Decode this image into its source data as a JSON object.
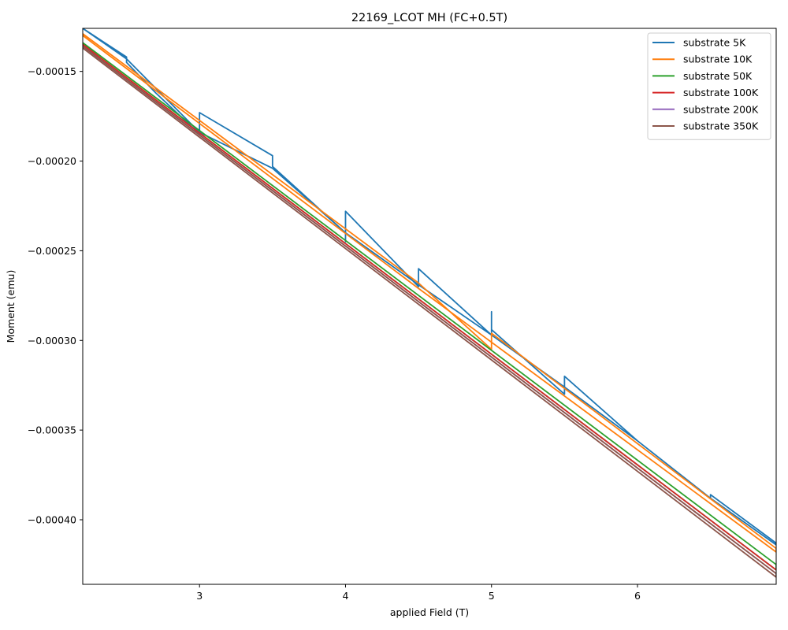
{
  "chart_data": {
    "type": "line",
    "title": "22169_LCOT MH (FC+0.5T)",
    "xlabel": "applied Field (T)",
    "ylabel": "Moment (emu)",
    "xlim": [
      2.2,
      6.95
    ],
    "ylim": [
      -0.000436,
      -0.000126
    ],
    "xticks": [
      3,
      4,
      5,
      6
    ],
    "xtick_labels": [
      "3",
      "4",
      "5",
      "6"
    ],
    "yticks": [
      -0.00015,
      -0.0002,
      -0.00025,
      -0.0003,
      -0.00035,
      -0.0004
    ],
    "ytick_labels": [
      "−0.00015",
      "−0.00020",
      "−0.00025",
      "−0.00030",
      "−0.00035",
      "−0.00040"
    ],
    "grid": false,
    "legend_position": "top-right",
    "series": [
      {
        "name": "substrate 5K",
        "color": "#1f77b4",
        "x": [
          2.2,
          2.5,
          2.5,
          2.7,
          3.0,
          3.0,
          3.0,
          3.5,
          3.5,
          4.0,
          4.0,
          4.0,
          4.5,
          4.5,
          5.0,
          5.0,
          5.0,
          5.5,
          5.5,
          6.0,
          6.5,
          6.5,
          6.95,
          6.95,
          6.5,
          6.0,
          5.5,
          5.0,
          4.5,
          4.0,
          3.5,
          3.0,
          2.5,
          2.2
        ],
        "y": [
          -0.000126,
          -0.000142,
          -0.000145,
          -0.000162,
          -0.000185,
          -0.000183,
          -0.000173,
          -0.000197,
          -0.000203,
          -0.00024,
          -0.000245,
          -0.000228,
          -0.00027,
          -0.00026,
          -0.000297,
          -0.000284,
          -0.000294,
          -0.00033,
          -0.00032,
          -0.000356,
          -0.000388,
          -0.000386,
          -0.000413,
          -0.000414,
          -0.000388,
          -0.000356,
          -0.000326,
          -0.000297,
          -0.000269,
          -0.00024,
          -0.000204,
          -0.000184,
          -0.000143,
          -0.000126
        ]
      },
      {
        "name": "substrate 10K",
        "color": "#ff7f0e",
        "x": [
          2.2,
          4.5,
          5.0,
          5.0,
          6.95,
          6.95,
          5.0,
          4.5,
          2.2
        ],
        "y": [
          -0.000129,
          -0.000268,
          -0.000305,
          -0.000296,
          -0.000416,
          -0.000418,
          -0.000301,
          -0.000271,
          -0.00013
        ]
      },
      {
        "name": "substrate 50K",
        "color": "#2ca02c",
        "x": [
          2.2,
          6.95,
          6.95,
          2.2
        ],
        "y": [
          -0.000134,
          -0.000425,
          -0.000428,
          -0.000135
        ]
      },
      {
        "name": "substrate 100K",
        "color": "#d62728",
        "x": [
          2.2,
          6.95
        ],
        "y": [
          -0.000135,
          -0.000428
        ]
      },
      {
        "name": "substrate 200K",
        "color": "#9467bd",
        "x": [
          2.2,
          6.95
        ],
        "y": [
          -0.000136,
          -0.00043
        ]
      },
      {
        "name": "substrate 350K",
        "color": "#8c564b",
        "x": [
          2.2,
          6.95,
          6.95,
          2.2
        ],
        "y": [
          -0.000136,
          -0.00043,
          -0.000432,
          -0.000137
        ]
      }
    ]
  }
}
